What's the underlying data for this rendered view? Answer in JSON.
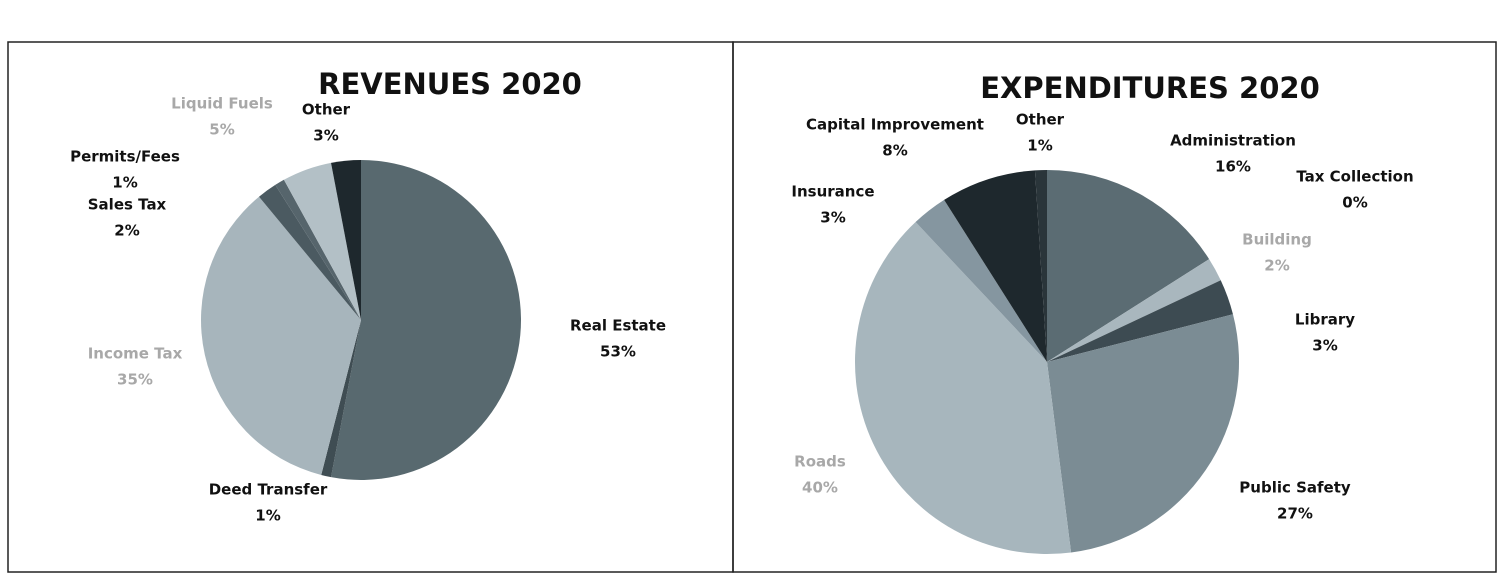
{
  "chart_data": [
    {
      "type": "pie",
      "title": "REVENUES 2020",
      "categories": [
        "Real Estate",
        "Deed Transfer",
        "Income Tax",
        "Sales Tax",
        "Permits/Fees",
        "Liquid Fuels",
        "Other"
      ],
      "values": [
        53,
        1,
        35,
        2,
        1,
        5,
        3
      ],
      "value_labels": [
        "53%",
        "1%",
        "35%",
        "2%",
        "1%",
        "5%",
        "3%"
      ],
      "colors": [
        "#58696f",
        "#3f4d53",
        "#a7b5bc",
        "#4b5a61",
        "#56656c",
        "#b3c0c6",
        "#1e282d"
      ]
    },
    {
      "type": "pie",
      "title": "EXPENDITURES 2020",
      "categories": [
        "Administration",
        "Tax Collection",
        "Building",
        "Library",
        "Public Safety",
        "Roads",
        "Insurance",
        "Capital Improvement",
        "Other"
      ],
      "values": [
        16,
        0,
        2,
        3,
        27,
        40,
        3,
        8,
        1
      ],
      "value_labels": [
        "16%",
        "0%",
        "2%",
        "3%",
        "27%",
        "40%",
        "3%",
        "8%",
        "1%"
      ],
      "colors": [
        "#5b6c73",
        "#3f4d53",
        "#a9b7be",
        "#3d4b52",
        "#7b8c94",
        "#a7b6bd",
        "#8596a0",
        "#1e282d",
        "#2a353a"
      ]
    }
  ]
}
